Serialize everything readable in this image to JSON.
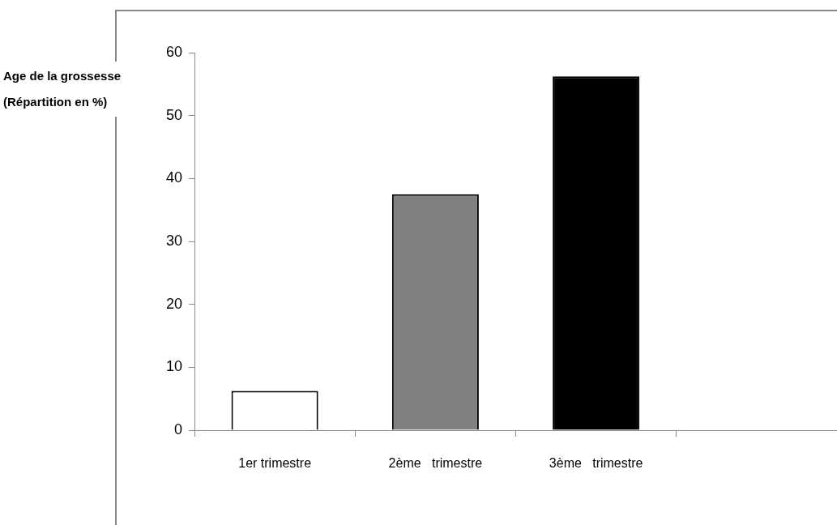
{
  "chart_data": {
    "type": "bar",
    "ylabel": "Age de la grossesse (Répartition en %)",
    "categories": [
      "1er trimestre",
      "2ème   trimestre",
      "3ème   trimestre",
      null
    ],
    "values": [
      6.25,
      37.5,
      56.25,
      null
    ],
    "colors": [
      "#ffffff",
      "#808080",
      "#000000",
      "#ffffff"
    ],
    "ylim": [
      0,
      60
    ],
    "yticks": [
      0,
      10,
      20,
      30,
      40,
      50,
      60
    ]
  }
}
